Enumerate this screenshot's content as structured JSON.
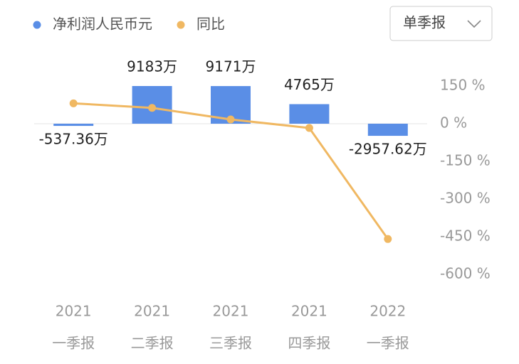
{
  "chart_data": {
    "type": "bar-line",
    "categories": [
      [
        "2021",
        "一季报"
      ],
      [
        "2021",
        "二季报"
      ],
      [
        "2021",
        "三季报"
      ],
      [
        "2021",
        "四季报"
      ],
      [
        "2022",
        "一季报"
      ]
    ],
    "series": [
      {
        "name": "净利润人民币元",
        "color": "#5a8ee6",
        "type": "bar",
        "axis": "y",
        "values": [
          -537.36,
          9183,
          9171,
          4765,
          -2957.62
        ],
        "value_labels": [
          "-537.36万",
          "9183万",
          "9171万",
          "4765万",
          "-2957.62万"
        ]
      },
      {
        "name": "同比",
        "color": "#f0b862",
        "type": "line",
        "axis": "y2",
        "values": [
          81,
          63,
          17,
          -17,
          -459
        ]
      }
    ],
    "ylim": [
      -36732,
      9183
    ],
    "y2lim": [
      -600,
      150
    ],
    "y2ticks": [
      {
        "value": 150,
        "label": "150 %"
      },
      {
        "value": 0,
        "label": "0 %"
      },
      {
        "value": -150,
        "label": "-150 %"
      },
      {
        "value": -300,
        "label": "-300 %"
      },
      {
        "value": -450,
        "label": "-450 %"
      },
      {
        "value": -600,
        "label": "-600 %"
      }
    ]
  },
  "controls": {
    "period_select": "单季报"
  }
}
